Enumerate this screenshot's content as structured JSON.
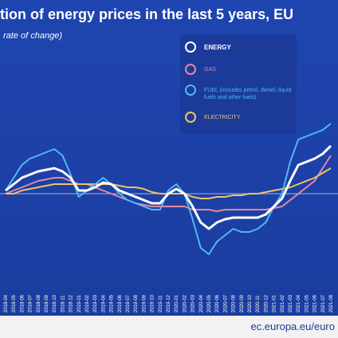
{
  "chart_data": {
    "type": "line",
    "title": "tion of energy prices in the last 5 years, EU",
    "subtitle": "rate of change)",
    "source": "ec.europa.eu/euro",
    "categories": [
      "2018-04",
      "2018-05",
      "2018-06",
      "2018-07",
      "2018-08",
      "2018-09",
      "2018-10",
      "2018-11",
      "2018-12",
      "2019-01",
      "2019-02",
      "2019-03",
      "2019-04",
      "2019-05",
      "2019-06",
      "2019-07",
      "2019-08",
      "2019-09",
      "2019-10",
      "2019-11",
      "2019-12",
      "2020-01",
      "2020-02",
      "2020-03",
      "2020-04",
      "2020-05",
      "2020-06",
      "2020-07",
      "2020-08",
      "2020-09",
      "2020-10",
      "2020-11",
      "2020-12",
      "2021-01",
      "2021-02",
      "2021-03",
      "2021-04",
      "2021-05",
      "2021-06",
      "2021-07",
      "2021-08"
    ],
    "ylim": [
      -25,
      60
    ],
    "series": [
      {
        "name": "GAS",
        "color": "#e4899e",
        "values": [
          0,
          1,
          2,
          3,
          4,
          4.5,
          5,
          5,
          4,
          3,
          3,
          2,
          1,
          0,
          -1,
          -2,
          -3,
          -3.5,
          -4,
          -4,
          -4,
          -4,
          -4,
          -5,
          -5,
          -5,
          -5.5,
          -5,
          -5,
          -5,
          -5,
          -5,
          -5,
          -4.5,
          -4,
          -2,
          0,
          2,
          4,
          8,
          12
        ]
      },
      {
        "name": "ELECTRICITY",
        "color": "#f2c265",
        "values": [
          0,
          0,
          1,
          1.5,
          2,
          2.5,
          3,
          3,
          3,
          3,
          3,
          3,
          3,
          3,
          2.5,
          2,
          2,
          1.5,
          0.5,
          0,
          0,
          0,
          0,
          -1,
          -1.5,
          -1.5,
          -1,
          -1,
          -0.5,
          -0.5,
          0,
          0,
          0.5,
          1,
          1.5,
          2,
          3,
          4,
          5,
          6.5,
          8
        ]
      },
      {
        "name": "FUEL (includes petrol, diesel, liquid fuels and other fuels)",
        "color": "#4fb9f2",
        "values": [
          1,
          5,
          9,
          11,
          12,
          13,
          14,
          12,
          6,
          -1,
          1,
          3,
          5,
          3,
          0,
          -2,
          -3,
          -4,
          -5,
          -5,
          1,
          3,
          0,
          -8,
          -17,
          -19,
          -15,
          -13,
          -11,
          -12,
          -12,
          -11,
          -9,
          -4,
          0,
          10,
          17,
          18,
          19,
          20,
          22
        ]
      },
      {
        "name": "ENERGY",
        "color": "#ffffff",
        "values": [
          1,
          3,
          5,
          6,
          7,
          7.5,
          8,
          7,
          5,
          1,
          1,
          2,
          3.5,
          3,
          1,
          0,
          -1,
          -2,
          -3,
          -3,
          0,
          1.5,
          0,
          -4,
          -9,
          -11,
          -9,
          -8,
          -7.5,
          -7.5,
          -7.5,
          -7.5,
          -6.5,
          -4,
          -1.5,
          4,
          9,
          10,
          11,
          12.5,
          15
        ]
      }
    ]
  }
}
